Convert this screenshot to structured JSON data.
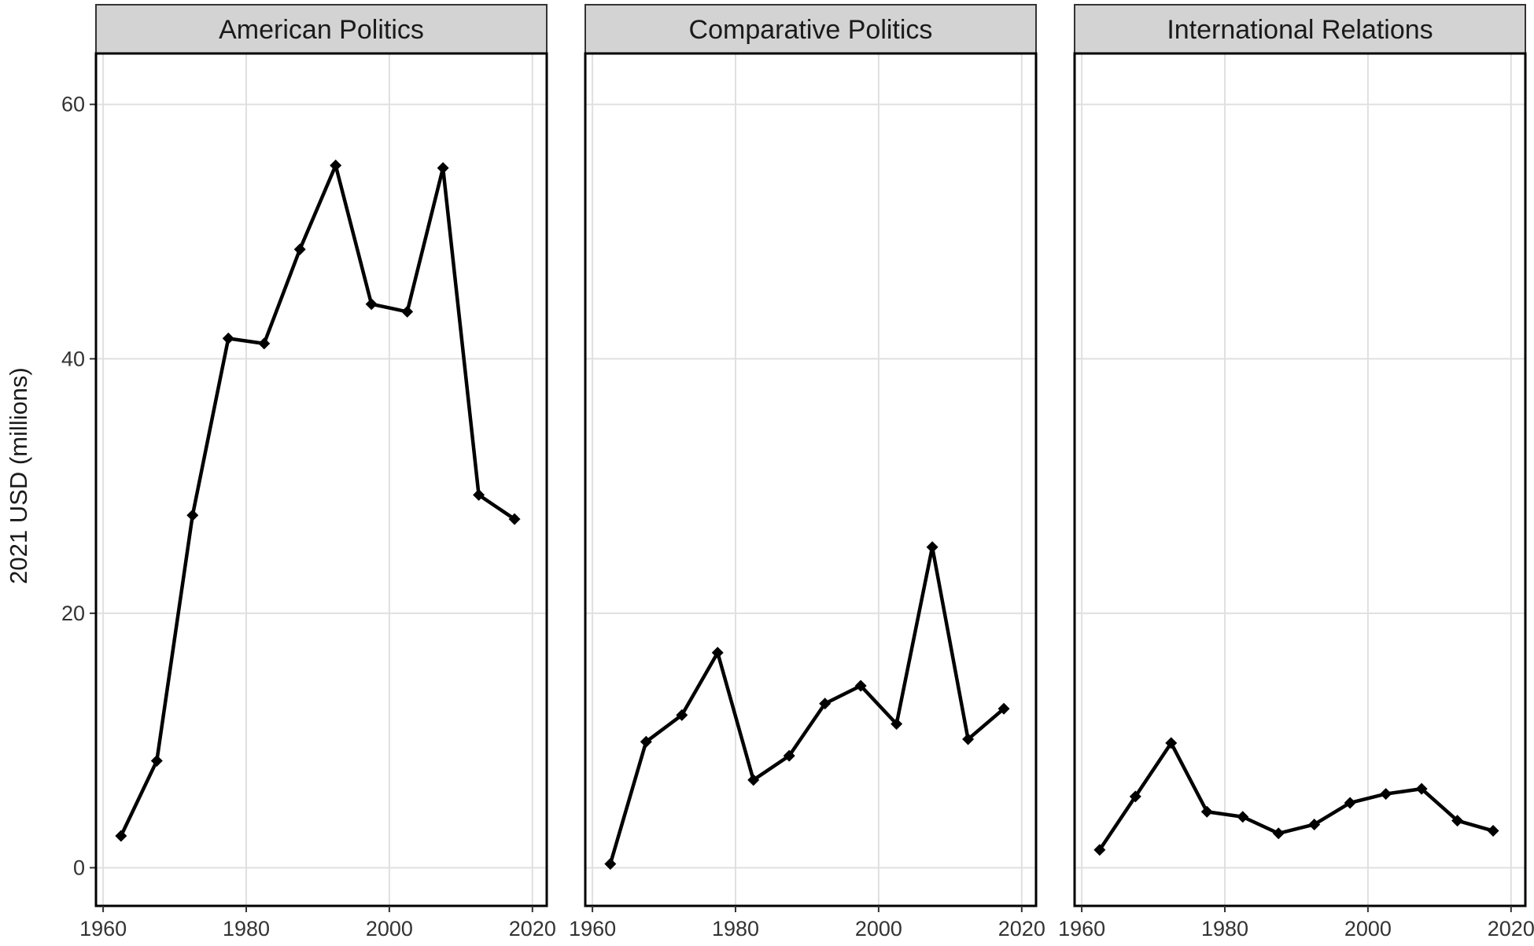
{
  "chart_data": {
    "type": "line",
    "ylabel": "2021 USD (millions)",
    "xlabel": "",
    "xlim": [
      1959,
      2022
    ],
    "ylim": [
      -3,
      64
    ],
    "x_ticks": [
      1960,
      1980,
      2000,
      2020
    ],
    "y_ticks": [
      0,
      20,
      40,
      60
    ],
    "grid": true,
    "colors": {
      "line": "#000000",
      "grid": "#e0e0e0",
      "strip_fill": "#d3d3d3",
      "panel_border": "#000000"
    },
    "x": [
      1962.5,
      1967.5,
      1972.5,
      1977.5,
      1982.5,
      1987.5,
      1992.5,
      1997.5,
      2002.5,
      2007.5,
      2012.5,
      2017.5
    ],
    "panels": [
      {
        "title": "American Politics",
        "values": [
          2.5,
          8.4,
          27.7,
          41.6,
          41.2,
          48.6,
          55.2,
          44.3,
          43.7,
          55.0,
          29.3,
          27.4
        ]
      },
      {
        "title": "Comparative Politics",
        "values": [
          0.3,
          9.9,
          12.0,
          16.9,
          6.9,
          8.8,
          12.9,
          14.3,
          11.3,
          25.2,
          10.1,
          12.5
        ]
      },
      {
        "title": "International Relations",
        "values": [
          1.4,
          5.6,
          9.8,
          4.4,
          4.0,
          2.7,
          3.4,
          5.1,
          5.8,
          6.2,
          3.7,
          2.9
        ]
      }
    ]
  }
}
